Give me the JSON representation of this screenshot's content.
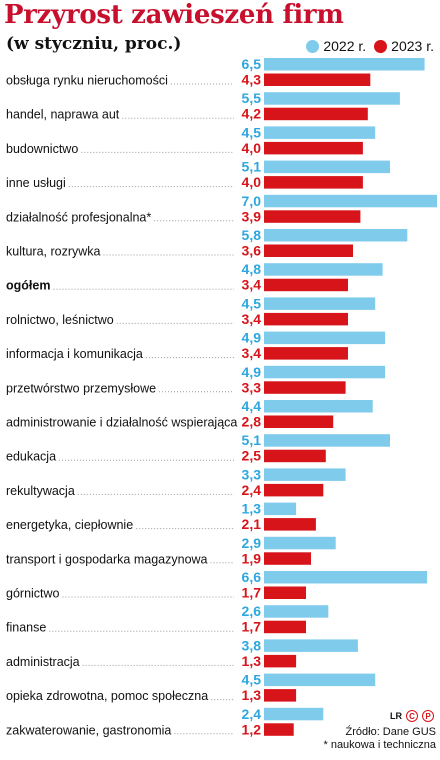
{
  "header": {
    "title": "Przyrost zawieszeń firm",
    "subtitle": "(w styczniu, proc.)"
  },
  "colors": {
    "series_2022": "#7fcbec",
    "series_2023": "#d7141a",
    "value_2022": "#2ea7e0",
    "value_2023": "#d7141a",
    "title": "#c8102e"
  },
  "legend": {
    "items": [
      {
        "label": "2022 r."
      },
      {
        "label": "2023 r."
      }
    ]
  },
  "footer": {
    "credit": "LR",
    "logo_text_1": "C",
    "logo_text_2": "P",
    "source": "Źródło: Dane GUS",
    "footnote": "* naukowa i techniczna"
  },
  "chart_data": {
    "type": "bar",
    "orientation": "horizontal",
    "title": "Przyrost zawieszeń firm",
    "subtitle": "(w styczniu, proc.)",
    "xlim": [
      0,
      7.0
    ],
    "grid": false,
    "legend_position": "top-right",
    "categories": [
      "obsługa rynku nieruchomości",
      "handel, naprawa aut",
      "budownictwo",
      "inne usługi",
      "działalność profesjonalna*",
      "kultura, rozrywka",
      "ogółem",
      "rolnictwo, leśnictwo",
      "informacja i komunikacja",
      "przetwórstwo przemysłowe",
      "administrowanie i działalność wspierająca",
      "edukacja",
      "rekultywacja",
      "energetyka, ciepłownie",
      "transport i gospodarka magazynowa",
      "górnictwo",
      "finanse",
      "administracja",
      "opieka zdrowotna, pomoc społeczna",
      "zakwaterowanie, gastronomia"
    ],
    "bold_categories": [
      "ogółem"
    ],
    "series": [
      {
        "name": "2022 r.",
        "values": [
          6.5,
          5.5,
          4.5,
          5.1,
          7.0,
          5.8,
          4.8,
          4.5,
          4.9,
          4.9,
          4.4,
          5.1,
          3.3,
          1.3,
          2.9,
          6.6,
          2.6,
          3.8,
          4.5,
          2.4
        ],
        "labels": [
          "6,5",
          "5,5",
          "4,5",
          "5,1",
          "7,0",
          "5,8",
          "4,8",
          "4,5",
          "4,9",
          "4,9",
          "4,4",
          "5,1",
          "3,3",
          "1,3",
          "2,9",
          "6,6",
          "2,6",
          "3,8",
          "4,5",
          "2,4"
        ]
      },
      {
        "name": "2023 r.",
        "values": [
          4.3,
          4.2,
          4.0,
          4.0,
          3.9,
          3.6,
          3.4,
          3.4,
          3.4,
          3.3,
          2.8,
          2.5,
          2.4,
          2.1,
          1.9,
          1.7,
          1.7,
          1.3,
          1.3,
          1.2
        ],
        "labels": [
          "4,3",
          "4,2",
          "4,0",
          "4,0",
          "3,9",
          "3,6",
          "3,4",
          "3,4",
          "3,4",
          "3,3",
          "2,8",
          "2,5",
          "2,4",
          "2,1",
          "1,9",
          "1,7",
          "1,7",
          "1,3",
          "1,3",
          "1,2"
        ]
      }
    ]
  }
}
